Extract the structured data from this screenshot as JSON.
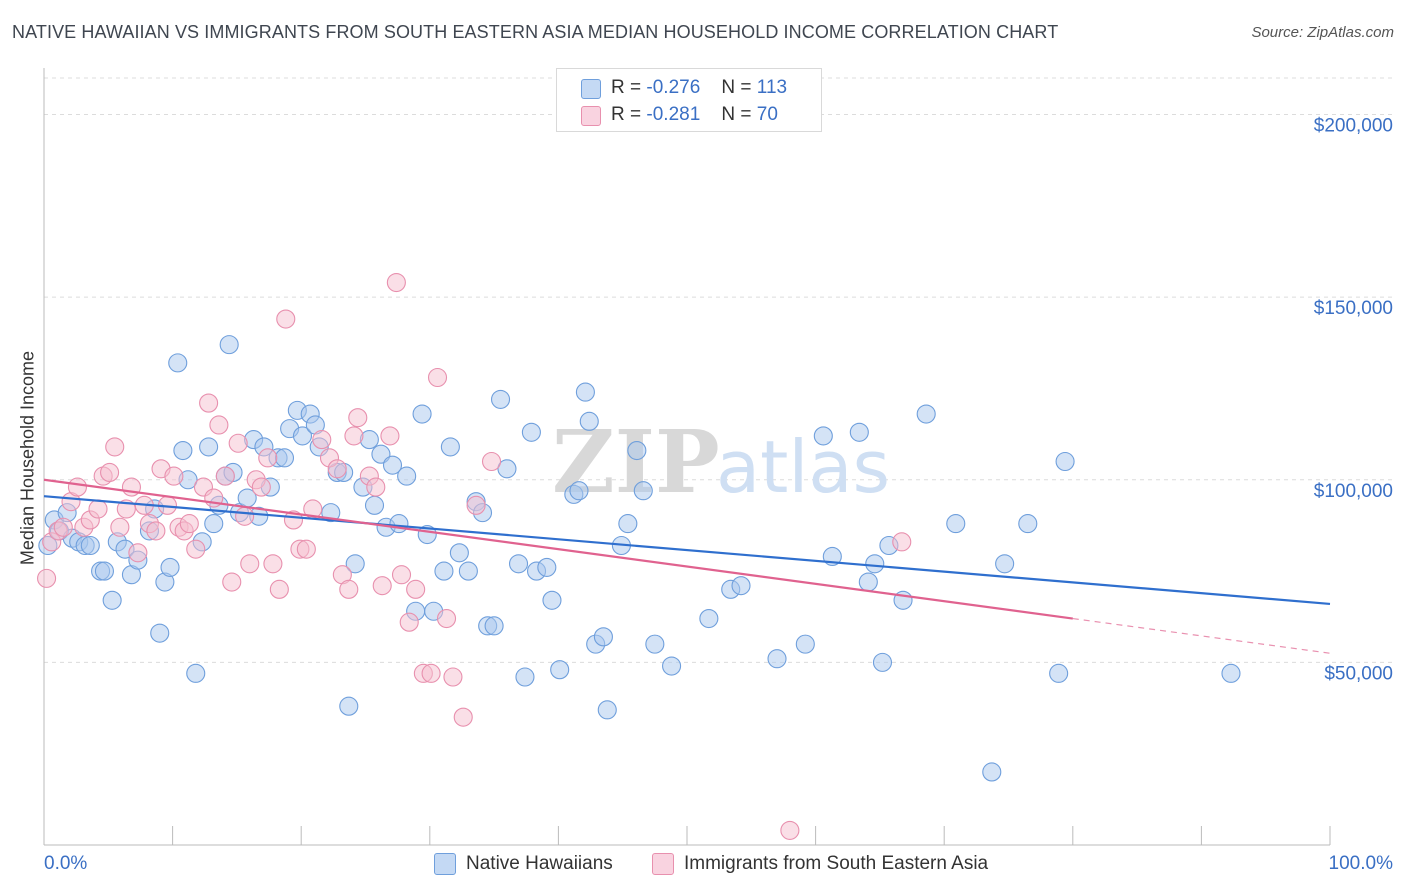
{
  "header": {
    "title": "NATIVE HAWAIIAN VS IMMIGRANTS FROM SOUTH EASTERN ASIA MEDIAN HOUSEHOLD INCOME CORRELATION CHART",
    "source": "Source: ZipAtlas.com"
  },
  "legend": {
    "rows": [
      {
        "r_label": "R =",
        "r_value": "-0.276",
        "n_label": "N =",
        "n_value": "113"
      },
      {
        "r_label": "R =",
        "r_value": "-0.281",
        "n_label": "N =",
        "n_value": "70"
      }
    ]
  },
  "watermark": {
    "zip": "ZIP",
    "atlas": "atlas"
  },
  "colors": {
    "blue_fill": "#aac8ee",
    "blue_stroke": "#6f9fdc",
    "blue_line": "#2f6fce",
    "pink_fill": "#f5bfd0",
    "pink_stroke": "#e890ae",
    "pink_line": "#e0628f",
    "axis_text": "#3a6fc4",
    "grid": "#dcdcdc"
  },
  "chart_data": {
    "type": "scatter",
    "title": "NATIVE HAWAIIAN VS IMMIGRANTS FROM SOUTH EASTERN ASIA MEDIAN HOUSEHOLD INCOME CORRELATION CHART",
    "xlabel": "",
    "ylabel": "Median Household Income",
    "xlim": [
      0,
      100
    ],
    "ylim": [
      0,
      210000
    ],
    "x_tick_labels": [
      "0.0%",
      "100.0%"
    ],
    "y_ticks": [
      50000,
      100000,
      150000,
      200000
    ],
    "y_tick_labels": [
      "$50,000",
      "$100,000",
      "$150,000",
      "$200,000"
    ],
    "grid": true,
    "legend_position": "bottom",
    "series": [
      {
        "name": "Native Hawaiians",
        "color": "#aac8ee",
        "trend": {
          "x": [
            0,
            100
          ],
          "y": [
            95500,
            66000
          ]
        },
        "points": [
          [
            0.3,
            82000
          ],
          [
            0.8,
            89000
          ],
          [
            1.2,
            86000
          ],
          [
            1.8,
            91000
          ],
          [
            2.2,
            84000
          ],
          [
            2.7,
            83000
          ],
          [
            3.2,
            82000
          ],
          [
            3.6,
            82000
          ],
          [
            4.4,
            75000
          ],
          [
            4.7,
            75000
          ],
          [
            5.3,
            67000
          ],
          [
            5.7,
            83000
          ],
          [
            6.3,
            81000
          ],
          [
            6.8,
            74000
          ],
          [
            7.3,
            78000
          ],
          [
            8.2,
            86000
          ],
          [
            8.6,
            92000
          ],
          [
            9.0,
            58000
          ],
          [
            9.4,
            72000
          ],
          [
            9.8,
            76000
          ],
          [
            10.4,
            132000
          ],
          [
            10.8,
            108000
          ],
          [
            11.2,
            100000
          ],
          [
            11.8,
            47000
          ],
          [
            12.3,
            83000
          ],
          [
            12.8,
            109000
          ],
          [
            13.2,
            88000
          ],
          [
            13.6,
            93000
          ],
          [
            14.1,
            101000
          ],
          [
            14.4,
            137000
          ],
          [
            14.7,
            102000
          ],
          [
            15.2,
            91000
          ],
          [
            15.8,
            95000
          ],
          [
            16.3,
            111000
          ],
          [
            16.7,
            90000
          ],
          [
            17.1,
            109000
          ],
          [
            17.6,
            98000
          ],
          [
            18.2,
            106000
          ],
          [
            18.7,
            106000
          ],
          [
            19.1,
            114000
          ],
          [
            19.7,
            119000
          ],
          [
            20.1,
            112000
          ],
          [
            20.7,
            118000
          ],
          [
            21.1,
            115000
          ],
          [
            21.4,
            109000
          ],
          [
            22.3,
            91000
          ],
          [
            22.8,
            102000
          ],
          [
            23.3,
            102000
          ],
          [
            23.7,
            38000
          ],
          [
            24.2,
            77000
          ],
          [
            24.8,
            98000
          ],
          [
            25.3,
            111000
          ],
          [
            25.7,
            93000
          ],
          [
            26.2,
            107000
          ],
          [
            26.6,
            87000
          ],
          [
            27.1,
            104000
          ],
          [
            27.6,
            88000
          ],
          [
            28.2,
            101000
          ],
          [
            28.9,
            64000
          ],
          [
            29.4,
            118000
          ],
          [
            29.8,
            85000
          ],
          [
            30.3,
            64000
          ],
          [
            31.1,
            75000
          ],
          [
            31.6,
            109000
          ],
          [
            32.3,
            80000
          ],
          [
            33.0,
            75000
          ],
          [
            33.6,
            94000
          ],
          [
            34.1,
            91000
          ],
          [
            34.5,
            60000
          ],
          [
            35.0,
            60000
          ],
          [
            35.5,
            122000
          ],
          [
            36.0,
            103000
          ],
          [
            36.9,
            77000
          ],
          [
            37.4,
            46000
          ],
          [
            37.9,
            113000
          ],
          [
            38.3,
            75000
          ],
          [
            39.1,
            76000
          ],
          [
            39.5,
            67000
          ],
          [
            40.1,
            48000
          ],
          [
            41.2,
            96000
          ],
          [
            41.6,
            97000
          ],
          [
            42.1,
            124000
          ],
          [
            42.4,
            116000
          ],
          [
            42.9,
            55000
          ],
          [
            43.5,
            57000
          ],
          [
            43.8,
            37000
          ],
          [
            44.9,
            82000
          ],
          [
            45.4,
            88000
          ],
          [
            46.1,
            108000
          ],
          [
            46.6,
            97000
          ],
          [
            47.5,
            55000
          ],
          [
            48.8,
            49000
          ],
          [
            51.7,
            62000
          ],
          [
            53.4,
            70000
          ],
          [
            54.2,
            71000
          ],
          [
            57.0,
            51000
          ],
          [
            59.2,
            55000
          ],
          [
            60.6,
            112000
          ],
          [
            61.3,
            79000
          ],
          [
            63.4,
            113000
          ],
          [
            64.1,
            72000
          ],
          [
            64.6,
            77000
          ],
          [
            65.2,
            50000
          ],
          [
            65.7,
            82000
          ],
          [
            66.8,
            67000
          ],
          [
            68.6,
            118000
          ],
          [
            70.9,
            88000
          ],
          [
            73.7,
            20000
          ],
          [
            74.7,
            77000
          ],
          [
            76.5,
            88000
          ],
          [
            78.9,
            47000
          ],
          [
            79.4,
            105000
          ],
          [
            92.3,
            47000
          ]
        ]
      },
      {
        "name": "Immigrants from South Eastern Asia",
        "color": "#f5bfd0",
        "trend": {
          "x": [
            0,
            80
          ],
          "y": [
            100000,
            62000
          ]
        },
        "trend_dashed": {
          "x": [
            80,
            100
          ],
          "y": [
            62000,
            52500
          ]
        },
        "points": [
          [
            0.2,
            73000
          ],
          [
            0.6,
            83000
          ],
          [
            1.1,
            86000
          ],
          [
            1.5,
            87000
          ],
          [
            2.1,
            94000
          ],
          [
            2.6,
            98000
          ],
          [
            3.1,
            87000
          ],
          [
            3.6,
            89000
          ],
          [
            4.2,
            92000
          ],
          [
            4.6,
            101000
          ],
          [
            5.1,
            102000
          ],
          [
            5.5,
            109000
          ],
          [
            5.9,
            87000
          ],
          [
            6.4,
            92000
          ],
          [
            6.8,
            98000
          ],
          [
            7.3,
            80000
          ],
          [
            7.8,
            93000
          ],
          [
            8.2,
            88000
          ],
          [
            8.7,
            86000
          ],
          [
            9.1,
            103000
          ],
          [
            9.6,
            93000
          ],
          [
            10.1,
            101000
          ],
          [
            10.5,
            87000
          ],
          [
            10.9,
            86000
          ],
          [
            11.3,
            88000
          ],
          [
            11.8,
            81000
          ],
          [
            12.4,
            98000
          ],
          [
            12.8,
            121000
          ],
          [
            13.2,
            95000
          ],
          [
            13.6,
            115000
          ],
          [
            14.1,
            101000
          ],
          [
            14.6,
            72000
          ],
          [
            15.1,
            110000
          ],
          [
            15.6,
            90000
          ],
          [
            16.0,
            77000
          ],
          [
            16.5,
            100000
          ],
          [
            16.9,
            98000
          ],
          [
            17.4,
            106000
          ],
          [
            17.8,
            77000
          ],
          [
            18.3,
            70000
          ],
          [
            18.8,
            144000
          ],
          [
            19.4,
            89000
          ],
          [
            19.9,
            81000
          ],
          [
            20.4,
            81000
          ],
          [
            20.9,
            92000
          ],
          [
            21.6,
            111000
          ],
          [
            22.2,
            106000
          ],
          [
            22.8,
            103000
          ],
          [
            23.2,
            74000
          ],
          [
            23.7,
            70000
          ],
          [
            24.1,
            112000
          ],
          [
            24.4,
            117000
          ],
          [
            25.3,
            101000
          ],
          [
            25.8,
            98000
          ],
          [
            26.3,
            71000
          ],
          [
            26.9,
            112000
          ],
          [
            27.4,
            154000
          ],
          [
            27.8,
            74000
          ],
          [
            28.4,
            61000
          ],
          [
            28.9,
            70000
          ],
          [
            29.5,
            47000
          ],
          [
            30.1,
            47000
          ],
          [
            30.6,
            128000
          ],
          [
            31.3,
            62000
          ],
          [
            31.8,
            46000
          ],
          [
            32.6,
            35000
          ],
          [
            33.6,
            93000
          ],
          [
            34.8,
            105000
          ],
          [
            58.0,
            4000
          ],
          [
            66.7,
            83000
          ]
        ]
      }
    ]
  }
}
